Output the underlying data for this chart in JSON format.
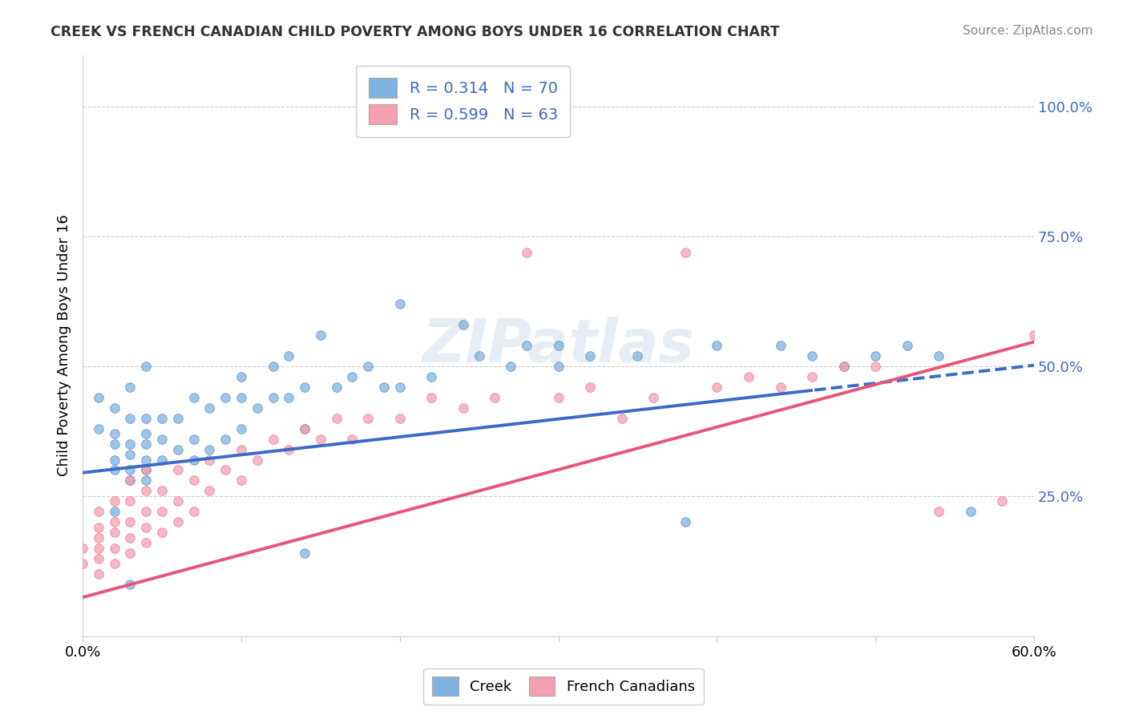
{
  "title": "CREEK VS FRENCH CANADIAN CHILD POVERTY AMONG BOYS UNDER 16 CORRELATION CHART",
  "source": "Source: ZipAtlas.com",
  "ylabel": "Child Poverty Among Boys Under 16",
  "xlim": [
    0.0,
    0.6
  ],
  "ylim": [
    -0.02,
    1.1
  ],
  "ytick_positions": [
    0.25,
    0.5,
    0.75,
    1.0
  ],
  "ytick_labels": [
    "25.0%",
    "50.0%",
    "75.0%",
    "100.0%"
  ],
  "creek_R": 0.314,
  "creek_N": 70,
  "french_R": 0.599,
  "french_N": 63,
  "creek_color": "#7EB3E0",
  "french_color": "#F4A0B0",
  "creek_line_color": "#3B6BC7",
  "french_line_color": "#E8547A",
  "background_color": "#ffffff",
  "creek_intercept": 0.295,
  "creek_slope": 0.345,
  "french_intercept": 0.055,
  "french_slope": 0.82,
  "creek_x": [
    0.01,
    0.01,
    0.02,
    0.02,
    0.02,
    0.02,
    0.02,
    0.03,
    0.03,
    0.03,
    0.03,
    0.03,
    0.03,
    0.04,
    0.04,
    0.04,
    0.04,
    0.04,
    0.04,
    0.04,
    0.05,
    0.05,
    0.05,
    0.06,
    0.06,
    0.07,
    0.07,
    0.07,
    0.08,
    0.08,
    0.09,
    0.09,
    0.1,
    0.1,
    0.1,
    0.11,
    0.12,
    0.12,
    0.13,
    0.13,
    0.14,
    0.14,
    0.15,
    0.16,
    0.17,
    0.18,
    0.19,
    0.2,
    0.2,
    0.22,
    0.24,
    0.25,
    0.27,
    0.28,
    0.3,
    0.3,
    0.32,
    0.35,
    0.38,
    0.4,
    0.44,
    0.46,
    0.48,
    0.5,
    0.52,
    0.54,
    0.56,
    0.02,
    0.03,
    0.14
  ],
  "creek_y": [
    0.38,
    0.44,
    0.3,
    0.32,
    0.35,
    0.37,
    0.42,
    0.28,
    0.3,
    0.33,
    0.35,
    0.4,
    0.46,
    0.28,
    0.3,
    0.32,
    0.35,
    0.37,
    0.4,
    0.5,
    0.32,
    0.36,
    0.4,
    0.34,
    0.4,
    0.32,
    0.36,
    0.44,
    0.34,
    0.42,
    0.36,
    0.44,
    0.38,
    0.44,
    0.48,
    0.42,
    0.44,
    0.5,
    0.44,
    0.52,
    0.38,
    0.46,
    0.56,
    0.46,
    0.48,
    0.5,
    0.46,
    0.62,
    0.46,
    0.48,
    0.58,
    0.52,
    0.5,
    0.54,
    0.5,
    0.54,
    0.52,
    0.52,
    0.2,
    0.54,
    0.54,
    0.52,
    0.5,
    0.52,
    0.54,
    0.52,
    0.22,
    0.22,
    0.08,
    0.14
  ],
  "french_x": [
    0.0,
    0.0,
    0.01,
    0.01,
    0.01,
    0.01,
    0.01,
    0.01,
    0.02,
    0.02,
    0.02,
    0.02,
    0.02,
    0.03,
    0.03,
    0.03,
    0.03,
    0.03,
    0.04,
    0.04,
    0.04,
    0.04,
    0.04,
    0.05,
    0.05,
    0.05,
    0.06,
    0.06,
    0.06,
    0.07,
    0.07,
    0.08,
    0.08,
    0.09,
    0.1,
    0.1,
    0.11,
    0.12,
    0.13,
    0.14,
    0.15,
    0.16,
    0.17,
    0.18,
    0.2,
    0.22,
    0.24,
    0.26,
    0.28,
    0.3,
    0.32,
    0.34,
    0.36,
    0.38,
    0.4,
    0.42,
    0.44,
    0.46,
    0.48,
    0.5,
    0.54,
    0.58,
    0.6
  ],
  "french_y": [
    0.12,
    0.15,
    0.1,
    0.13,
    0.15,
    0.17,
    0.19,
    0.22,
    0.12,
    0.15,
    0.18,
    0.2,
    0.24,
    0.14,
    0.17,
    0.2,
    0.24,
    0.28,
    0.16,
    0.19,
    0.22,
    0.26,
    0.3,
    0.18,
    0.22,
    0.26,
    0.2,
    0.24,
    0.3,
    0.22,
    0.28,
    0.26,
    0.32,
    0.3,
    0.28,
    0.34,
    0.32,
    0.36,
    0.34,
    0.38,
    0.36,
    0.4,
    0.36,
    0.4,
    0.4,
    0.44,
    0.42,
    0.44,
    0.72,
    0.44,
    0.46,
    0.4,
    0.44,
    0.72,
    0.46,
    0.48,
    0.46,
    0.48,
    0.5,
    0.5,
    0.22,
    0.24,
    0.56
  ]
}
